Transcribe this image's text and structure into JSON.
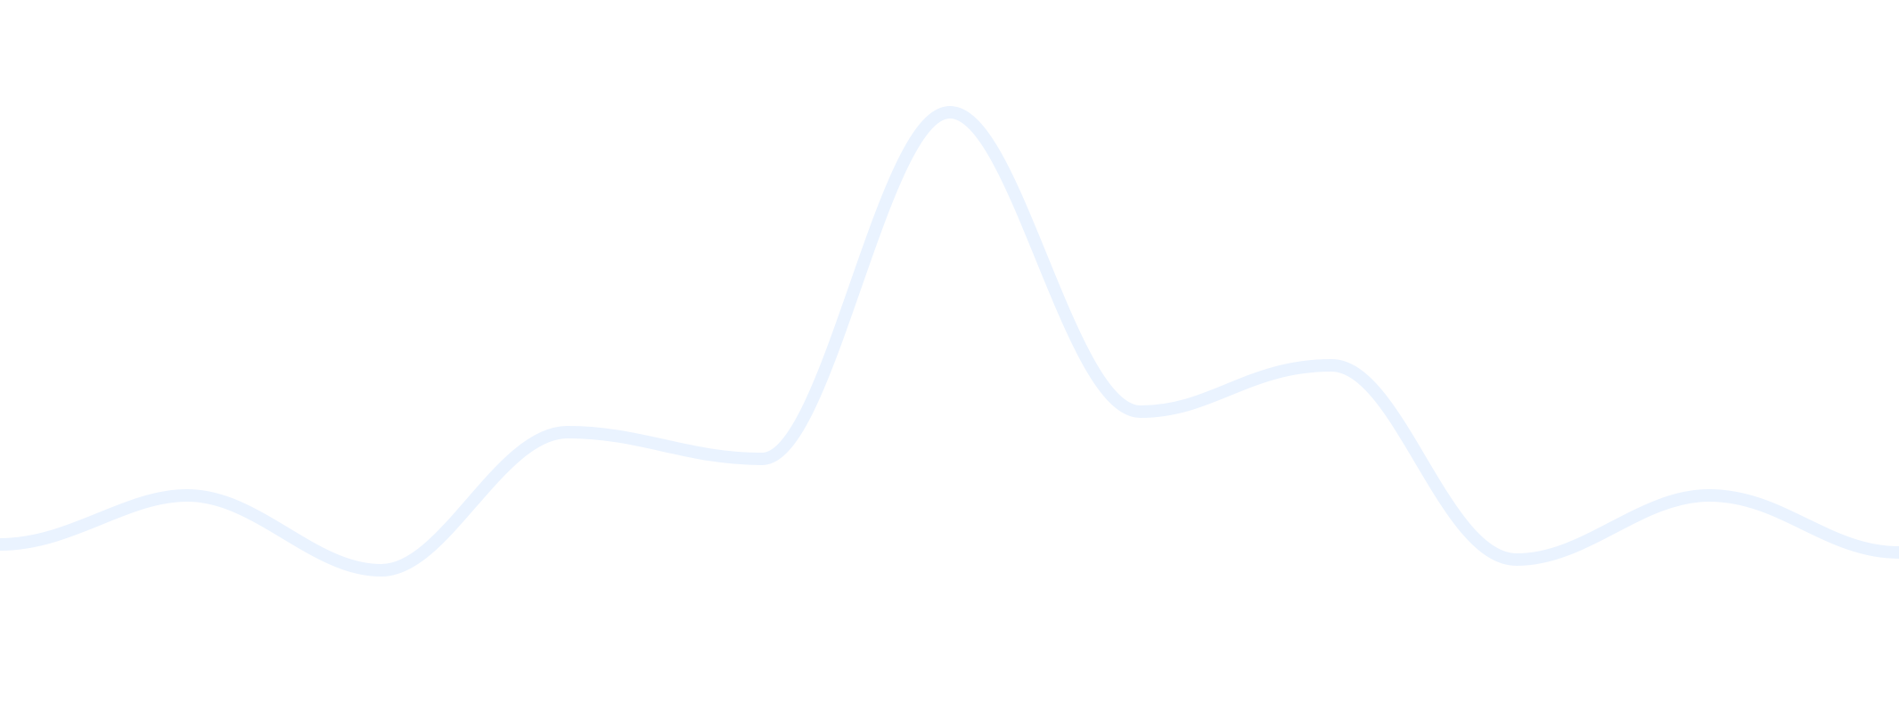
{
  "colors": {
    "background": "#ffffff",
    "wave_stroke": "#eaf3ff",
    "grid_line": "#ececec"
  },
  "wave": {
    "description_type": "decorative-waveform",
    "has_grid": true
  }
}
